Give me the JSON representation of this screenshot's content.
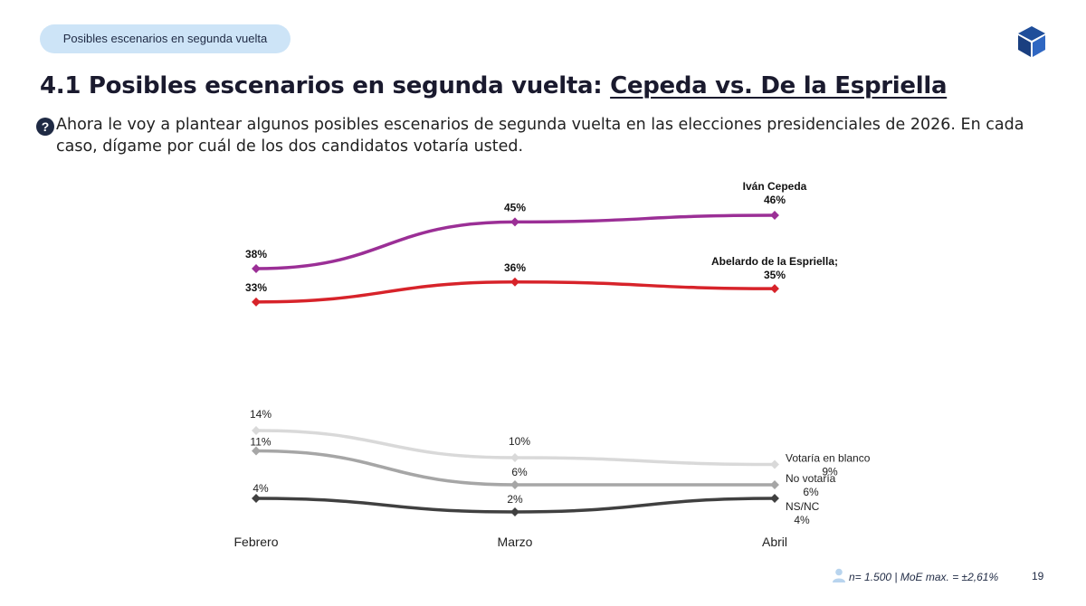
{
  "header": {
    "pill_label": "Posibles escenarios en segunda vuelta",
    "title_prefix": "4.1 Posibles escenarios en segunda vuelta: ",
    "title_emphasis": "Cepeda vs. De la Espriella"
  },
  "question": {
    "icon": "question-circle-icon",
    "text": "Ahora le voy a plantear algunos posibles escenarios de segunda vuelta en las elecciones presidenciales de 2026. En cada caso, dígame por cuál de los dos candidatos votaría usted."
  },
  "chart_data": {
    "type": "line",
    "categories": [
      "Febrero",
      "Marzo",
      "Abril"
    ],
    "series": [
      {
        "name": "Iván Cepeda",
        "end_label": "Iván Cepeda",
        "values": [
          38,
          45,
          46
        ],
        "labels": [
          "38%",
          "45%",
          "46%"
        ],
        "color": "#9b2f96"
      },
      {
        "name": "Abelardo de la Espriella",
        "end_label": "Abelardo de la Espriella;",
        "values": [
          33,
          36,
          35
        ],
        "labels": [
          "33%",
          "36%",
          "35%"
        ],
        "color": "#d7232a"
      },
      {
        "name": "Votaría en blanco",
        "end_label": "Votaría en blanco",
        "values": [
          14,
          10,
          9
        ],
        "labels": [
          "14%",
          "10%",
          "9%"
        ],
        "color": "#d9d9d9"
      },
      {
        "name": "No votaría",
        "end_label": "No votaría",
        "values": [
          11,
          6,
          6
        ],
        "labels": [
          "11%",
          "6%",
          "6%"
        ],
        "color": "#a6a6a6"
      },
      {
        "name": "NS/NC",
        "end_label": "NS/NC",
        "values": [
          4,
          2,
          4
        ],
        "labels": [
          "4%",
          "2%",
          "4%"
        ],
        "color": "#404040"
      }
    ]
  },
  "footer": {
    "icon": "user-icon",
    "sample": "n= 1.500",
    "moe": "| MoE max. = ±2,61%",
    "page_number": "19"
  }
}
